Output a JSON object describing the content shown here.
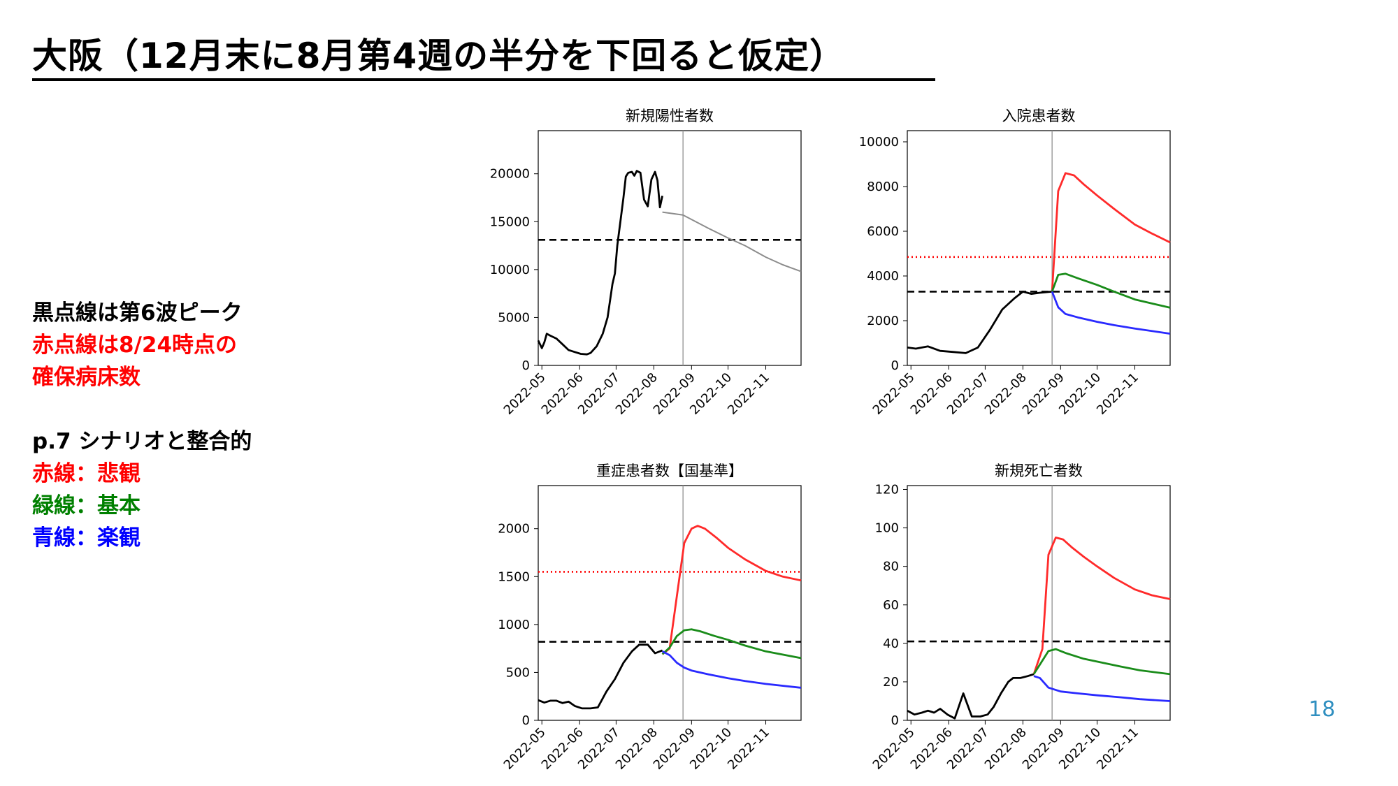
{
  "slide": {
    "title": "大阪（12月末に8月第4週の半分を下回ると仮定）",
    "notes": [
      {
        "text": "黒点線は第6波ピーク",
        "color": "#000000"
      },
      {
        "text": "赤点線は8/24時点の",
        "color": "#ff0000"
      },
      {
        "text": "確保病床数",
        "color": "#ff0000"
      },
      {
        "text": "",
        "color": "#000000"
      },
      {
        "text": "p.7 シナリオと整合的",
        "color": "#000000"
      },
      {
        "text": "赤線：悲観",
        "color": "#ff0000"
      },
      {
        "text": "緑線：基本",
        "color": "#008000"
      },
      {
        "text": "青線：楽観",
        "color": "#0000ff"
      }
    ],
    "page_number": "18"
  },
  "colors": {
    "pessimistic": "#ff2a2a",
    "base": "#1a8c1a",
    "optimistic": "#2a2aff",
    "actual": "#000000",
    "projection_gray": "#8c8c8c",
    "page_number": "#2f8fc0"
  },
  "chart_data": [
    {
      "type": "line",
      "title": "新規陽性者数",
      "ylim": [
        0,
        24500
      ],
      "xlim": [
        "2022-04-28",
        "2022-11-30"
      ],
      "x_ticks": [
        "2022-05",
        "2022-06",
        "2022-07",
        "2022-08",
        "2022-09",
        "2022-10",
        "2022-11"
      ],
      "y_ticks": [
        0,
        5000,
        10000,
        15000,
        20000
      ],
      "vline": "2022-08-25",
      "hlines": [
        {
          "y": 13100,
          "style": "dashed",
          "color": "#000000"
        }
      ],
      "series": [
        {
          "role": "actual",
          "points": [
            [
              "2022-04-28",
              2600
            ],
            [
              "2022-05-01",
              1800
            ],
            [
              "2022-05-03",
              2400
            ],
            [
              "2022-05-05",
              3300
            ],
            [
              "2022-05-08",
              3100
            ],
            [
              "2022-05-13",
              2800
            ],
            [
              "2022-05-18",
              2200
            ],
            [
              "2022-05-23",
              1600
            ],
            [
              "2022-05-28",
              1400
            ],
            [
              "2022-06-02",
              1200
            ],
            [
              "2022-06-07",
              1150
            ],
            [
              "2022-06-10",
              1300
            ],
            [
              "2022-06-15",
              2000
            ],
            [
              "2022-06-20",
              3300
            ],
            [
              "2022-06-24",
              5000
            ],
            [
              "2022-06-28",
              8500
            ],
            [
              "2022-06-30",
              9600
            ],
            [
              "2022-07-02",
              12500
            ],
            [
              "2022-07-05",
              15500
            ],
            [
              "2022-07-07",
              17500
            ],
            [
              "2022-07-09",
              19700
            ],
            [
              "2022-07-11",
              20100
            ],
            [
              "2022-07-14",
              20200
            ],
            [
              "2022-07-16",
              19800
            ],
            [
              "2022-07-18",
              20300
            ],
            [
              "2022-07-21",
              20100
            ],
            [
              "2022-07-24",
              17300
            ],
            [
              "2022-07-27",
              16600
            ],
            [
              "2022-07-30",
              19400
            ],
            [
              "2022-08-02",
              20200
            ],
            [
              "2022-08-04",
              19300
            ],
            [
              "2022-08-06",
              16500
            ],
            [
              "2022-08-08",
              17700
            ]
          ]
        },
        {
          "role": "projection",
          "points": [
            [
              "2022-08-08",
              16000
            ],
            [
              "2022-08-25",
              15700
            ],
            [
              "2022-09-15",
              14300
            ],
            [
              "2022-10-01",
              13300
            ],
            [
              "2022-10-15",
              12500
            ],
            [
              "2022-11-01",
              11300
            ],
            [
              "2022-11-15",
              10500
            ],
            [
              "2022-11-30",
              9800
            ]
          ]
        }
      ]
    },
    {
      "type": "line",
      "title": "入院患者数",
      "ylim": [
        0,
        10500
      ],
      "xlim": [
        "2022-04-28",
        "2022-11-30"
      ],
      "x_ticks": [
        "2022-05",
        "2022-06",
        "2022-07",
        "2022-08",
        "2022-09",
        "2022-10",
        "2022-11"
      ],
      "y_ticks": [
        0,
        2000,
        4000,
        6000,
        8000,
        10000
      ],
      "vline": "2022-08-25",
      "hlines": [
        {
          "y": 3300,
          "style": "dashed",
          "color": "#000000"
        },
        {
          "y": 4850,
          "style": "dotted",
          "color": "#ff0000"
        }
      ],
      "series": [
        {
          "role": "actual",
          "points": [
            [
              "2022-04-28",
              800
            ],
            [
              "2022-05-05",
              750
            ],
            [
              "2022-05-15",
              850
            ],
            [
              "2022-05-25",
              650
            ],
            [
              "2022-06-05",
              600
            ],
            [
              "2022-06-15",
              550
            ],
            [
              "2022-06-25",
              800
            ],
            [
              "2022-07-05",
              1600
            ],
            [
              "2022-07-15",
              2500
            ],
            [
              "2022-07-25",
              3000
            ],
            [
              "2022-08-01",
              3300
            ],
            [
              "2022-08-08",
              3200
            ],
            [
              "2022-08-15",
              3250
            ],
            [
              "2022-08-25",
              3300
            ]
          ]
        },
        {
          "role": "pessimistic",
          "points": [
            [
              "2022-08-25",
              3300
            ],
            [
              "2022-08-30",
              7800
            ],
            [
              "2022-09-05",
              8600
            ],
            [
              "2022-09-12",
              8500
            ],
            [
              "2022-09-20",
              8100
            ],
            [
              "2022-10-01",
              7600
            ],
            [
              "2022-10-15",
              7000
            ],
            [
              "2022-11-01",
              6300
            ],
            [
              "2022-11-15",
              5900
            ],
            [
              "2022-11-30",
              5500
            ]
          ]
        },
        {
          "role": "base",
          "points": [
            [
              "2022-08-25",
              3300
            ],
            [
              "2022-08-30",
              4050
            ],
            [
              "2022-09-05",
              4100
            ],
            [
              "2022-09-15",
              3900
            ],
            [
              "2022-10-01",
              3600
            ],
            [
              "2022-10-15",
              3300
            ],
            [
              "2022-11-01",
              2950
            ],
            [
              "2022-11-30",
              2580
            ]
          ]
        },
        {
          "role": "optimistic",
          "points": [
            [
              "2022-08-25",
              3300
            ],
            [
              "2022-08-30",
              2600
            ],
            [
              "2022-09-05",
              2300
            ],
            [
              "2022-09-15",
              2150
            ],
            [
              "2022-10-01",
              1950
            ],
            [
              "2022-10-15",
              1800
            ],
            [
              "2022-11-01",
              1650
            ],
            [
              "2022-11-30",
              1420
            ]
          ]
        }
      ]
    },
    {
      "type": "line",
      "title": "重症患者数【国基準】",
      "ylim": [
        0,
        2450
      ],
      "xlim": [
        "2022-04-28",
        "2022-11-30"
      ],
      "x_ticks": [
        "2022-05",
        "2022-06",
        "2022-07",
        "2022-08",
        "2022-09",
        "2022-10",
        "2022-11"
      ],
      "y_ticks": [
        0,
        500,
        1000,
        1500,
        2000
      ],
      "vline": "2022-08-25",
      "hlines": [
        {
          "y": 820,
          "style": "dashed",
          "color": "#000000"
        },
        {
          "y": 1550,
          "style": "dotted",
          "color": "#ff0000"
        }
      ],
      "series": [
        {
          "role": "actual",
          "points": [
            [
              "2022-04-28",
              210
            ],
            [
              "2022-05-03",
              185
            ],
            [
              "2022-05-08",
              205
            ],
            [
              "2022-05-13",
              205
            ],
            [
              "2022-05-18",
              180
            ],
            [
              "2022-05-23",
              195
            ],
            [
              "2022-05-28",
              150
            ],
            [
              "2022-06-03",
              125
            ],
            [
              "2022-06-10",
              125
            ],
            [
              "2022-06-16",
              135
            ],
            [
              "2022-06-23",
              300
            ],
            [
              "2022-06-30",
              430
            ],
            [
              "2022-07-07",
              600
            ],
            [
              "2022-07-14",
              720
            ],
            [
              "2022-07-20",
              790
            ],
            [
              "2022-07-27",
              790
            ],
            [
              "2022-08-02",
              700
            ],
            [
              "2022-08-08",
              730
            ]
          ]
        },
        {
          "role": "pessimistic",
          "points": [
            [
              "2022-08-08",
              690
            ],
            [
              "2022-08-14",
              750
            ],
            [
              "2022-08-20",
              1300
            ],
            [
              "2022-08-26",
              1850
            ],
            [
              "2022-09-01",
              2000
            ],
            [
              "2022-09-06",
              2030
            ],
            [
              "2022-09-12",
              2000
            ],
            [
              "2022-09-22",
              1900
            ],
            [
              "2022-10-01",
              1800
            ],
            [
              "2022-10-15",
              1680
            ],
            [
              "2022-11-01",
              1560
            ],
            [
              "2022-11-15",
              1500
            ],
            [
              "2022-11-30",
              1460
            ]
          ]
        },
        {
          "role": "base",
          "points": [
            [
              "2022-08-08",
              690
            ],
            [
              "2022-08-14",
              760
            ],
            [
              "2022-08-20",
              880
            ],
            [
              "2022-08-26",
              940
            ],
            [
              "2022-09-01",
              950
            ],
            [
              "2022-09-08",
              930
            ],
            [
              "2022-09-20",
              880
            ],
            [
              "2022-10-01",
              840
            ],
            [
              "2022-10-15",
              780
            ],
            [
              "2022-11-01",
              720
            ],
            [
              "2022-11-30",
              650
            ]
          ]
        },
        {
          "role": "optimistic",
          "points": [
            [
              "2022-08-08",
              720
            ],
            [
              "2022-08-14",
              680
            ],
            [
              "2022-08-20",
              600
            ],
            [
              "2022-08-26",
              550
            ],
            [
              "2022-09-01",
              520
            ],
            [
              "2022-09-15",
              480
            ],
            [
              "2022-10-01",
              440
            ],
            [
              "2022-10-15",
              410
            ],
            [
              "2022-11-01",
              380
            ],
            [
              "2022-11-30",
              340
            ]
          ]
        }
      ]
    },
    {
      "type": "line",
      "title": "新規死亡者数",
      "ylim": [
        0,
        122
      ],
      "xlim": [
        "2022-04-28",
        "2022-11-30"
      ],
      "x_ticks": [
        "2022-05",
        "2022-06",
        "2022-07",
        "2022-08",
        "2022-09",
        "2022-10",
        "2022-11"
      ],
      "y_ticks": [
        0,
        20,
        40,
        60,
        80,
        100,
        120
      ],
      "vline": "2022-08-25",
      "hlines": [
        {
          "y": 41,
          "style": "dashed",
          "color": "#000000"
        }
      ],
      "series": [
        {
          "role": "actual",
          "points": [
            [
              "2022-04-28",
              5
            ],
            [
              "2022-05-04",
              3
            ],
            [
              "2022-05-10",
              4
            ],
            [
              "2022-05-15",
              5
            ],
            [
              "2022-05-20",
              4
            ],
            [
              "2022-05-25",
              6
            ],
            [
              "2022-05-31",
              3
            ],
            [
              "2022-06-06",
              1
            ],
            [
              "2022-06-13",
              14
            ],
            [
              "2022-06-20",
              2
            ],
            [
              "2022-06-27",
              2
            ],
            [
              "2022-07-03",
              3
            ],
            [
              "2022-07-08",
              7
            ],
            [
              "2022-07-14",
              14
            ],
            [
              "2022-07-20",
              20
            ],
            [
              "2022-07-24",
              22
            ],
            [
              "2022-07-30",
              22
            ],
            [
              "2022-08-05",
              23
            ],
            [
              "2022-08-10",
              24
            ]
          ]
        },
        {
          "role": "pessimistic",
          "points": [
            [
              "2022-08-10",
              24
            ],
            [
              "2022-08-17",
              37
            ],
            [
              "2022-08-22",
              86
            ],
            [
              "2022-08-28",
              95
            ],
            [
              "2022-09-03",
              94
            ],
            [
              "2022-09-10",
              90
            ],
            [
              "2022-09-20",
              85
            ],
            [
              "2022-10-01",
              80
            ],
            [
              "2022-10-15",
              74
            ],
            [
              "2022-11-01",
              68
            ],
            [
              "2022-11-15",
              65
            ],
            [
              "2022-11-30",
              63
            ]
          ]
        },
        {
          "role": "base",
          "points": [
            [
              "2022-08-10",
              24
            ],
            [
              "2022-08-17",
              31
            ],
            [
              "2022-08-22",
              36
            ],
            [
              "2022-08-28",
              37
            ],
            [
              "2022-09-05",
              35
            ],
            [
              "2022-09-20",
              32
            ],
            [
              "2022-10-05",
              30
            ],
            [
              "2022-10-20",
              28
            ],
            [
              "2022-11-05",
              26
            ],
            [
              "2022-11-30",
              24
            ]
          ]
        },
        {
          "role": "optimistic",
          "points": [
            [
              "2022-08-10",
              23
            ],
            [
              "2022-08-15",
              22
            ],
            [
              "2022-08-22",
              17
            ],
            [
              "2022-09-01",
              15
            ],
            [
              "2022-09-15",
              14
            ],
            [
              "2022-10-01",
              13
            ],
            [
              "2022-10-20",
              12
            ],
            [
              "2022-11-05",
              11
            ],
            [
              "2022-11-30",
              10
            ]
          ]
        }
      ]
    }
  ]
}
